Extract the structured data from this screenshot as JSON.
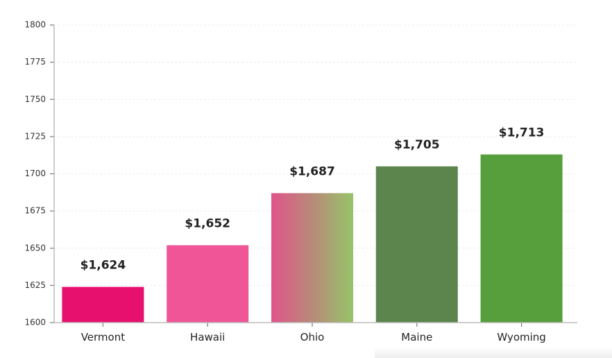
{
  "chart_data": {
    "type": "bar",
    "title": "",
    "xlabel": "",
    "ylabel": "",
    "categories": [
      "Vermont",
      "Hawaii",
      "Ohio",
      "Maine",
      "Wyoming"
    ],
    "values": [
      1624,
      1652,
      1687,
      1705,
      1713
    ],
    "value_labels": [
      "$1,624",
      "$1,652",
      "$1,687",
      "$1,705",
      "$1,713"
    ],
    "ylim": [
      1600,
      1800
    ],
    "yticks": [
      1600,
      1625,
      1650,
      1675,
      1700,
      1725,
      1750,
      1775,
      1800
    ],
    "grid": true,
    "legend": null,
    "colors": [
      "#e8106f",
      "#ef5597",
      "gradient:#e0548a->#96c46a",
      "#5c854e",
      "#579e3c"
    ]
  }
}
